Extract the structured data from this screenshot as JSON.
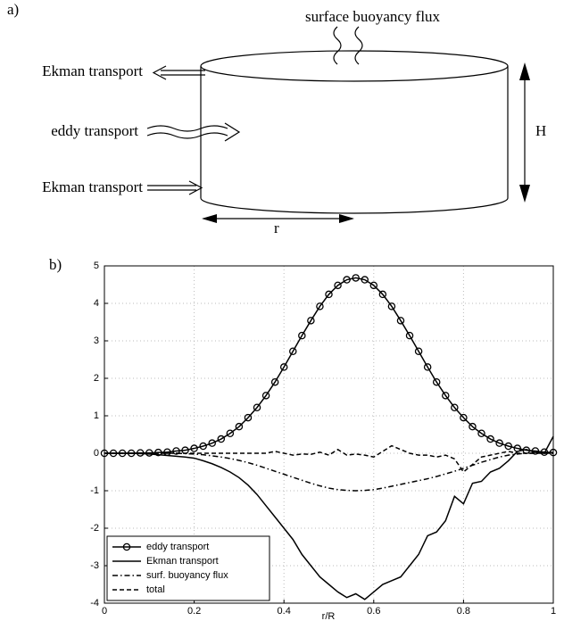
{
  "diagram": {
    "label": "a)",
    "surface_flux": "surface buoyancy flux",
    "ekman_top": "Ekman transport",
    "eddy": "eddy transport",
    "ekman_bottom": "Ekman transport",
    "height": "H",
    "radius": "r"
  },
  "chart_data": {
    "type": "line",
    "panel_label": "b)",
    "xlabel": "r/R",
    "x": [
      0,
      0.02,
      0.04,
      0.06,
      0.08,
      0.1,
      0.12,
      0.14,
      0.16,
      0.18,
      0.2,
      0.22,
      0.24,
      0.26,
      0.28,
      0.3,
      0.32,
      0.34,
      0.36,
      0.38,
      0.4,
      0.42,
      0.44,
      0.46,
      0.48,
      0.5,
      0.52,
      0.54,
      0.56,
      0.58,
      0.6,
      0.62,
      0.64,
      0.66,
      0.68,
      0.7,
      0.72,
      0.74,
      0.76,
      0.78,
      0.8,
      0.82,
      0.84,
      0.86,
      0.88,
      0.9,
      0.92,
      0.94,
      0.96,
      0.98,
      1
    ],
    "series": [
      {
        "name": "eddy transport",
        "color": "#000",
        "style": "circle-line",
        "values": [
          0,
          0,
          0,
          0,
          0.01,
          0.01,
          0.02,
          0.03,
          0.06,
          0.08,
          0.13,
          0.19,
          0.27,
          0.38,
          0.53,
          0.71,
          0.95,
          1.22,
          1.54,
          1.9,
          2.3,
          2.72,
          3.14,
          3.54,
          3.92,
          4.24,
          4.48,
          4.63,
          4.68,
          4.63,
          4.48,
          4.24,
          3.92,
          3.54,
          3.14,
          2.72,
          2.3,
          1.9,
          1.54,
          1.22,
          0.95,
          0.71,
          0.53,
          0.38,
          0.27,
          0.19,
          0.13,
          0.08,
          0.06,
          0.03,
          0.02
        ]
      },
      {
        "name": "Ekman transport",
        "color": "#000",
        "style": "solid",
        "values": [
          0,
          0,
          0,
          0,
          -0.01,
          -0.02,
          -0.04,
          -0.06,
          -0.08,
          -0.1,
          -0.13,
          -0.2,
          -0.28,
          -0.38,
          -0.5,
          -0.65,
          -0.85,
          -1.1,
          -1.4,
          -1.7,
          -2,
          -2.3,
          -2.7,
          -3,
          -3.3,
          -3.5,
          -3.7,
          -3.85,
          -3.75,
          -3.9,
          -3.7,
          -3.5,
          -3.4,
          -3.3,
          -3,
          -2.7,
          -2.2,
          -2.1,
          -1.8,
          -1.15,
          -1.35,
          -0.8,
          -0.75,
          -0.5,
          -0.4,
          -0.2,
          0.05,
          0.1,
          0.02,
          0,
          0.45
        ]
      },
      {
        "name": "surf. buoyancy flux",
        "color": "#000",
        "style": "dashdot",
        "values": [
          0,
          0,
          0,
          0,
          0,
          0,
          0,
          0,
          0,
          -0.01,
          -0.02,
          -0.04,
          -0.07,
          -0.1,
          -0.14,
          -0.19,
          -0.25,
          -0.32,
          -0.4,
          -0.48,
          -0.56,
          -0.64,
          -0.72,
          -0.8,
          -0.87,
          -0.93,
          -0.97,
          -0.99,
          -1,
          -0.99,
          -0.97,
          -0.93,
          -0.88,
          -0.83,
          -0.78,
          -0.73,
          -0.68,
          -0.62,
          -0.55,
          -0.48,
          -0.4,
          -0.32,
          -0.24,
          -0.17,
          -0.1,
          -0.05,
          -0.02,
          0,
          0,
          0,
          0
        ]
      },
      {
        "name": "total",
        "color": "#000",
        "style": "dashed",
        "values": [
          0,
          0,
          0,
          0,
          0,
          0,
          0,
          0,
          0,
          0,
          0,
          0,
          0,
          0,
          0,
          0,
          0,
          0,
          0,
          0.05,
          0,
          -0.05,
          -0.02,
          -0.03,
          0.03,
          -0.05,
          0.1,
          -0.05,
          -0.02,
          -0.05,
          -0.1,
          0.05,
          0.2,
          0.1,
          0,
          -0.05,
          -0.05,
          -0.1,
          -0.05,
          -0.15,
          -0.5,
          -0.3,
          -0.1,
          -0.05,
          0,
          0.05,
          0,
          0,
          0,
          0,
          0
        ]
      }
    ],
    "xlim": [
      0,
      1
    ],
    "ylim": [
      -4,
      5
    ],
    "xticks": [
      0,
      0.2,
      0.4,
      0.6,
      0.8,
      1
    ],
    "yticks": [
      -4,
      -3,
      -2,
      -1,
      0,
      1,
      2,
      3,
      4,
      5
    ],
    "grid": true,
    "legend": "lower left"
  }
}
